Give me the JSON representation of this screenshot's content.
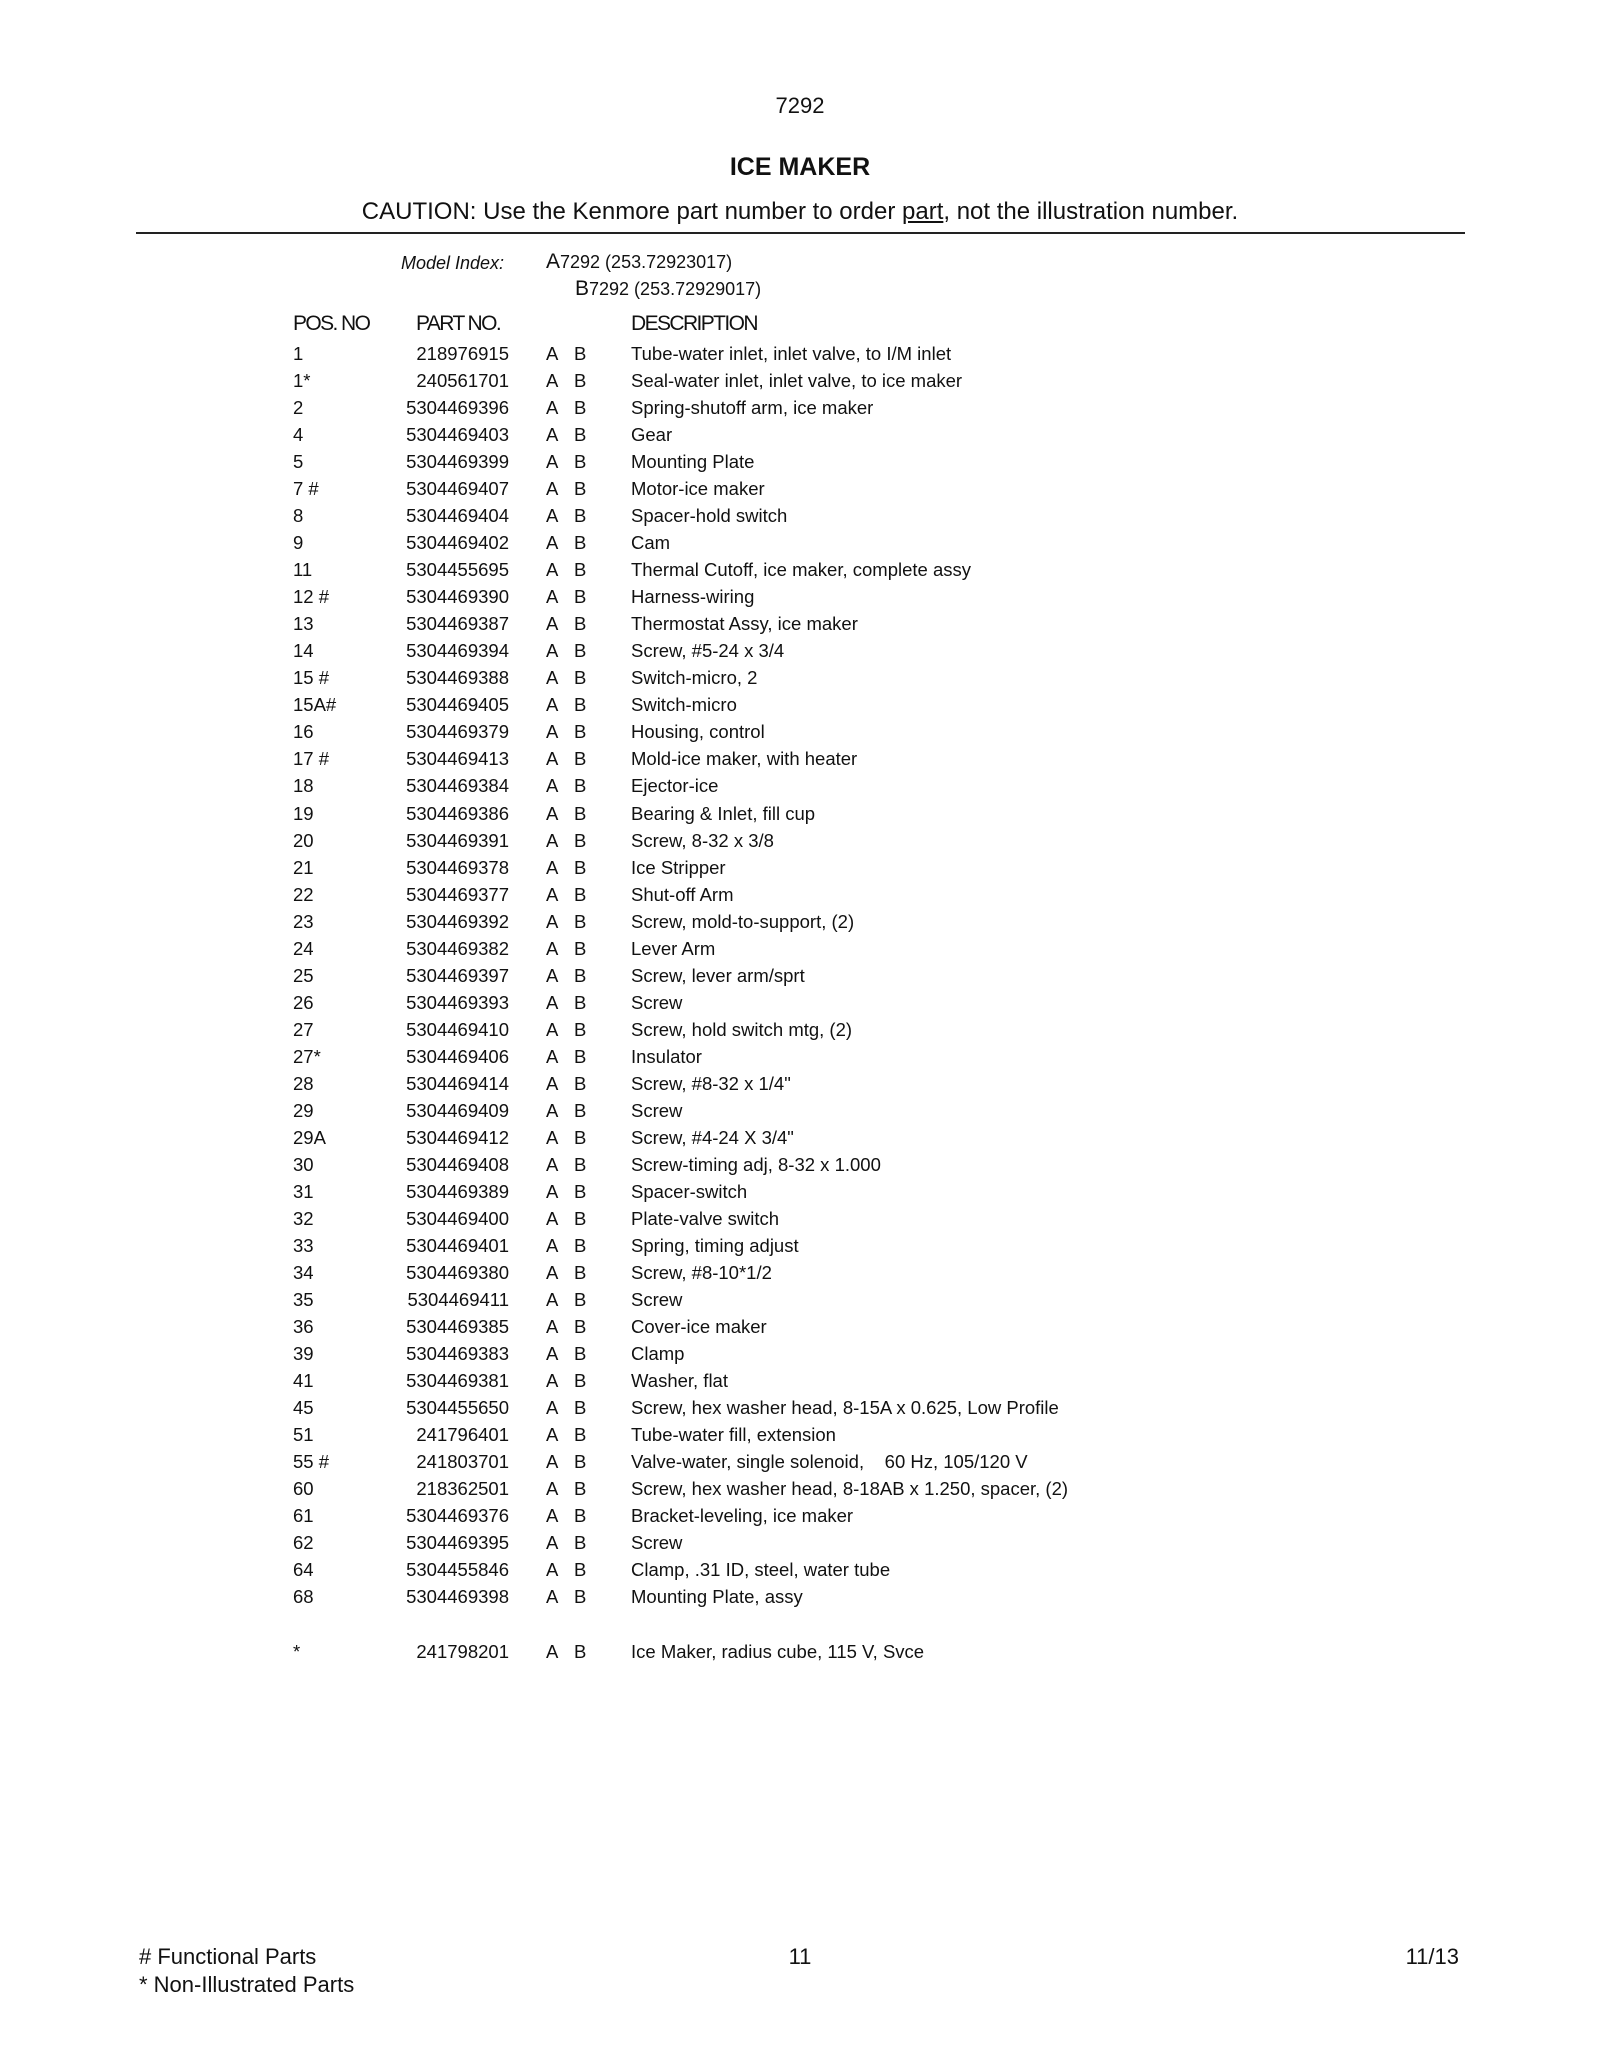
{
  "page_code": "7292",
  "title": "ICE MAKER",
  "caution": {
    "before": "CAUTION: Use the Kenmore part number to order ",
    "underlined": "part",
    "after": ", not the illustration number."
  },
  "model_index": {
    "label": "Model Index:",
    "models": [
      {
        "letter": "A",
        "text": "7292 (253.72923017)"
      },
      {
        "letter": "B",
        "text": "7292 (253.72929017)"
      }
    ]
  },
  "headers": {
    "pos": "POS. NO",
    "part": "PART NO.",
    "description": "DESCRIPTION"
  },
  "rows": [
    {
      "pos": "1",
      "part": "218976915",
      "a": "A",
      "b": "B",
      "desc": "Tube-water inlet, inlet valve, to I/M inlet"
    },
    {
      "pos": "1*",
      "part": "240561701",
      "a": "A",
      "b": "B",
      "desc": "Seal-water inlet, inlet valve, to ice maker"
    },
    {
      "pos": "2",
      "part": "5304469396",
      "a": "A",
      "b": "B",
      "desc": "Spring-shutoff arm, ice maker"
    },
    {
      "pos": "4",
      "part": "5304469403",
      "a": "A",
      "b": "B",
      "desc": "Gear"
    },
    {
      "pos": "5",
      "part": "5304469399",
      "a": "A",
      "b": "B",
      "desc": "Mounting Plate"
    },
    {
      "pos": "7 #",
      "part": "5304469407",
      "a": "A",
      "b": "B",
      "desc": "Motor-ice maker"
    },
    {
      "pos": "8",
      "part": "5304469404",
      "a": "A",
      "b": "B",
      "desc": "Spacer-hold switch"
    },
    {
      "pos": "9",
      "part": "5304469402",
      "a": "A",
      "b": "B",
      "desc": "Cam"
    },
    {
      "pos": "11",
      "part": "5304455695",
      "a": "A",
      "b": "B",
      "desc": "Thermal Cutoff, ice maker, complete assy"
    },
    {
      "pos": "12 #",
      "part": "5304469390",
      "a": "A",
      "b": "B",
      "desc": "Harness-wiring"
    },
    {
      "pos": "13",
      "part": "5304469387",
      "a": "A",
      "b": "B",
      "desc": "Thermostat Assy, ice maker"
    },
    {
      "pos": "14",
      "part": "5304469394",
      "a": "A",
      "b": "B",
      "desc": "Screw, #5-24 x 3/4"
    },
    {
      "pos": "15 #",
      "part": "5304469388",
      "a": "A",
      "b": "B",
      "desc": "Switch-micro, 2"
    },
    {
      "pos": "15A#",
      "part": "5304469405",
      "a": "A",
      "b": "B",
      "desc": "Switch-micro"
    },
    {
      "pos": "16",
      "part": "5304469379",
      "a": "A",
      "b": "B",
      "desc": "Housing, control"
    },
    {
      "pos": "17 #",
      "part": "5304469413",
      "a": "A",
      "b": "B",
      "desc": "Mold-ice maker, with heater"
    },
    {
      "pos": "18",
      "part": "5304469384",
      "a": "A",
      "b": "B",
      "desc": "Ejector-ice"
    },
    {
      "pos": "19",
      "part": "5304469386",
      "a": "A",
      "b": "B",
      "desc": "Bearing & Inlet, fill cup"
    },
    {
      "pos": "20",
      "part": "5304469391",
      "a": "A",
      "b": "B",
      "desc": "Screw, 8-32 x 3/8"
    },
    {
      "pos": "21",
      "part": "5304469378",
      "a": "A",
      "b": "B",
      "desc": "Ice Stripper"
    },
    {
      "pos": "22",
      "part": "5304469377",
      "a": "A",
      "b": "B",
      "desc": "Shut-off Arm"
    },
    {
      "pos": "23",
      "part": "5304469392",
      "a": "A",
      "b": "B",
      "desc": "Screw, mold-to-support, (2)"
    },
    {
      "pos": "24",
      "part": "5304469382",
      "a": "A",
      "b": "B",
      "desc": "Lever Arm"
    },
    {
      "pos": "25",
      "part": "5304469397",
      "a": "A",
      "b": "B",
      "desc": "Screw, lever arm/sprt"
    },
    {
      "pos": "26",
      "part": "5304469393",
      "a": "A",
      "b": "B",
      "desc": "Screw"
    },
    {
      "pos": "27",
      "part": "5304469410",
      "a": "A",
      "b": "B",
      "desc": "Screw, hold switch mtg, (2)"
    },
    {
      "pos": "27*",
      "part": "5304469406",
      "a": "A",
      "b": "B",
      "desc": "Insulator"
    },
    {
      "pos": "28",
      "part": "5304469414",
      "a": "A",
      "b": "B",
      "desc": "Screw, #8-32 x 1/4\""
    },
    {
      "pos": "29",
      "part": "5304469409",
      "a": "A",
      "b": "B",
      "desc": "Screw"
    },
    {
      "pos": "29A",
      "part": "5304469412",
      "a": "A",
      "b": "B",
      "desc": "Screw, #4-24 X 3/4\""
    },
    {
      "pos": "30",
      "part": "5304469408",
      "a": "A",
      "b": "B",
      "desc": "Screw-timing adj, 8-32 x 1.000"
    },
    {
      "pos": "31",
      "part": "5304469389",
      "a": "A",
      "b": "B",
      "desc": "Spacer-switch"
    },
    {
      "pos": "32",
      "part": "5304469400",
      "a": "A",
      "b": "B",
      "desc": "Plate-valve switch"
    },
    {
      "pos": "33",
      "part": "5304469401",
      "a": "A",
      "b": "B",
      "desc": "Spring, timing adjust"
    },
    {
      "pos": "34",
      "part": "5304469380",
      "a": "A",
      "b": "B",
      "desc": "Screw, #8-10*1/2"
    },
    {
      "pos": "35",
      "part": "5304469411",
      "a": "A",
      "b": "B",
      "desc": "Screw"
    },
    {
      "pos": "36",
      "part": "5304469385",
      "a": "A",
      "b": "B",
      "desc": "Cover-ice maker"
    },
    {
      "pos": "39",
      "part": "5304469383",
      "a": "A",
      "b": "B",
      "desc": "Clamp"
    },
    {
      "pos": "41",
      "part": "5304469381",
      "a": "A",
      "b": "B",
      "desc": "Washer, flat"
    },
    {
      "pos": "45",
      "part": "5304455650",
      "a": "A",
      "b": "B",
      "desc": "Screw, hex washer head, 8-15A x 0.625, Low Profile"
    },
    {
      "pos": "51",
      "part": "241796401",
      "a": "A",
      "b": "B",
      "desc": "Tube-water fill, extension"
    },
    {
      "pos": "55 #",
      "part": "241803701",
      "a": "A",
      "b": "B",
      "desc": "Valve-water, single solenoid,    60 Hz, 105/120 V"
    },
    {
      "pos": "60",
      "part": "218362501",
      "a": "A",
      "b": "B",
      "desc": "Screw, hex washer head, 8-18AB x 1.250, spacer, (2)"
    },
    {
      "pos": "61",
      "part": "5304469376",
      "a": "A",
      "b": "B",
      "desc": "Bracket-leveling, ice maker"
    },
    {
      "pos": "62",
      "part": "5304469395",
      "a": "A",
      "b": "B",
      "desc": "Screw"
    },
    {
      "pos": "64",
      "part": "5304455846",
      "a": "A",
      "b": "B",
      "desc": "Clamp, .31 ID, steel, water tube"
    },
    {
      "pos": "68",
      "part": "5304469398",
      "a": "A",
      "b": "B",
      "desc": "Mounting Plate, assy"
    }
  ],
  "extra_row": {
    "pos": "*",
    "part": "241798201",
    "a": "A",
    "b": "B",
    "desc": "Ice Maker, radius cube, 115 V, Svce"
  },
  "footer": {
    "legend_functional": "# Functional Parts",
    "legend_non_illustrated": "* Non-Illustrated Parts",
    "page_number": "11",
    "date": "11/13"
  }
}
